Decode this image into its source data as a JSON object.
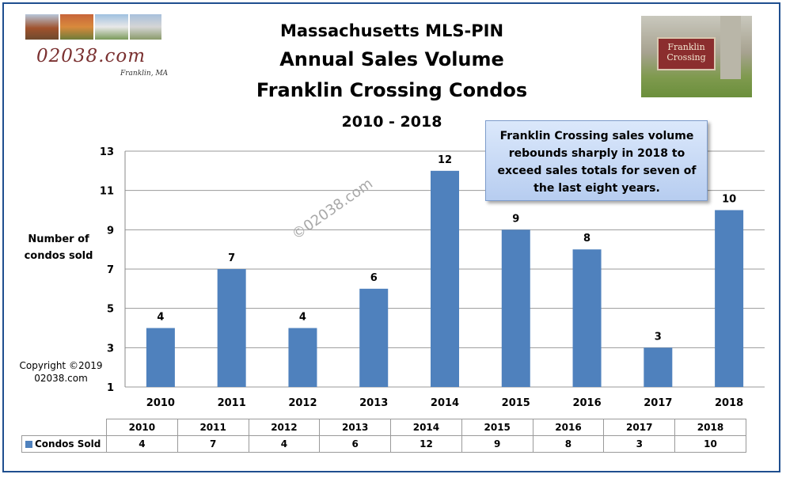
{
  "header": {
    "title_line1": "Massachusetts MLS-PIN",
    "title_line2": "Annual Sales Volume",
    "title_line3": "Franklin Crossing Condos",
    "title_line4": "2010 - 2018"
  },
  "logo": {
    "text": "02038.com",
    "subtext": "Franklin, MA"
  },
  "photo": {
    "sign_line1": "Franklin",
    "sign_line2": "Crossing"
  },
  "callout": {
    "text": "Franklin Crossing sales volume rebounds sharply in 2018 to exceed sales totals for seven of the last eight years."
  },
  "y_axis_label_line1": "Number  of",
  "y_axis_label_line2": "condos sold",
  "copyright_line1": "Copyright ©2019",
  "copyright_line2": "02038.com",
  "watermark": "©02038.com",
  "colors": {
    "bar": "#4f81bd",
    "border": "#1f4f8f",
    "callout": "#c6d9f5"
  },
  "chart_data": {
    "type": "bar",
    "categories": [
      "2010",
      "2011",
      "2012",
      "2013",
      "2014",
      "2015",
      "2016",
      "2017",
      "2018"
    ],
    "series": [
      {
        "name": "Condos Sold",
        "values": [
          4,
          7,
          4,
          6,
          12,
          9,
          8,
          3,
          10
        ]
      }
    ],
    "ylim": [
      1,
      13
    ],
    "yticks": [
      1,
      3,
      5,
      7,
      9,
      11,
      13
    ],
    "grid": true,
    "data_table": true
  }
}
